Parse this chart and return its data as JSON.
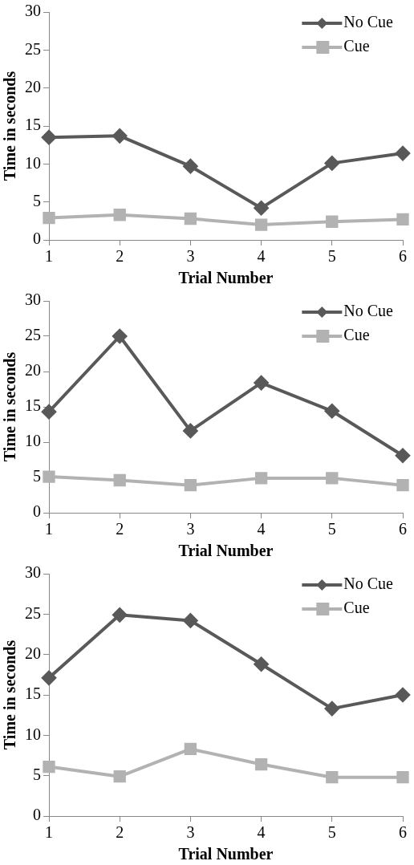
{
  "chart_data": [
    {
      "type": "line",
      "xlabel": "Trial Number",
      "ylabel": "Time in seconds",
      "categories": [
        "1",
        "2",
        "3",
        "4",
        "5",
        "6"
      ],
      "ylim": [
        0,
        30
      ],
      "yticks": [
        0,
        5,
        10,
        15,
        20,
        25,
        30
      ],
      "grid": false,
      "legend": "top right",
      "series": [
        {
          "name": "No Cue",
          "color": "#595959",
          "marker": "diamond",
          "values": [
            13.5,
            13.7,
            9.7,
            4.2,
            10.1,
            11.4
          ]
        },
        {
          "name": "Cue",
          "color": "#b2b2b2",
          "marker": "square",
          "values": [
            2.9,
            3.3,
            2.8,
            2.0,
            2.4,
            2.7
          ]
        }
      ]
    },
    {
      "type": "line",
      "xlabel": "Trial Number",
      "ylabel": "Time in seconds",
      "categories": [
        "1",
        "2",
        "3",
        "4",
        "5",
        "6"
      ],
      "ylim": [
        0,
        30
      ],
      "yticks": [
        0,
        5,
        10,
        15,
        20,
        25,
        30
      ],
      "grid": false,
      "legend": "top right",
      "series": [
        {
          "name": "No Cue",
          "color": "#595959",
          "marker": "diamond",
          "values": [
            14.3,
            25.0,
            11.6,
            18.4,
            14.4,
            8.1
          ]
        },
        {
          "name": "Cue",
          "color": "#b2b2b2",
          "marker": "square",
          "values": [
            5.1,
            4.6,
            3.9,
            4.9,
            4.9,
            3.9
          ]
        }
      ]
    },
    {
      "type": "line",
      "xlabel": "Trial Number",
      "ylabel": "Time in seconds",
      "categories": [
        "1",
        "2",
        "3",
        "4",
        "5",
        "6"
      ],
      "ylim": [
        0,
        30
      ],
      "yticks": [
        0,
        5,
        10,
        15,
        20,
        25,
        30
      ],
      "grid": false,
      "legend": "top right",
      "series": [
        {
          "name": "No Cue",
          "color": "#595959",
          "marker": "diamond",
          "values": [
            17.1,
            24.9,
            24.2,
            18.8,
            13.3,
            15.0
          ]
        },
        {
          "name": "Cue",
          "color": "#b2b2b2",
          "marker": "square",
          "values": [
            6.1,
            4.9,
            8.3,
            6.4,
            4.8,
            4.8
          ]
        }
      ]
    }
  ]
}
